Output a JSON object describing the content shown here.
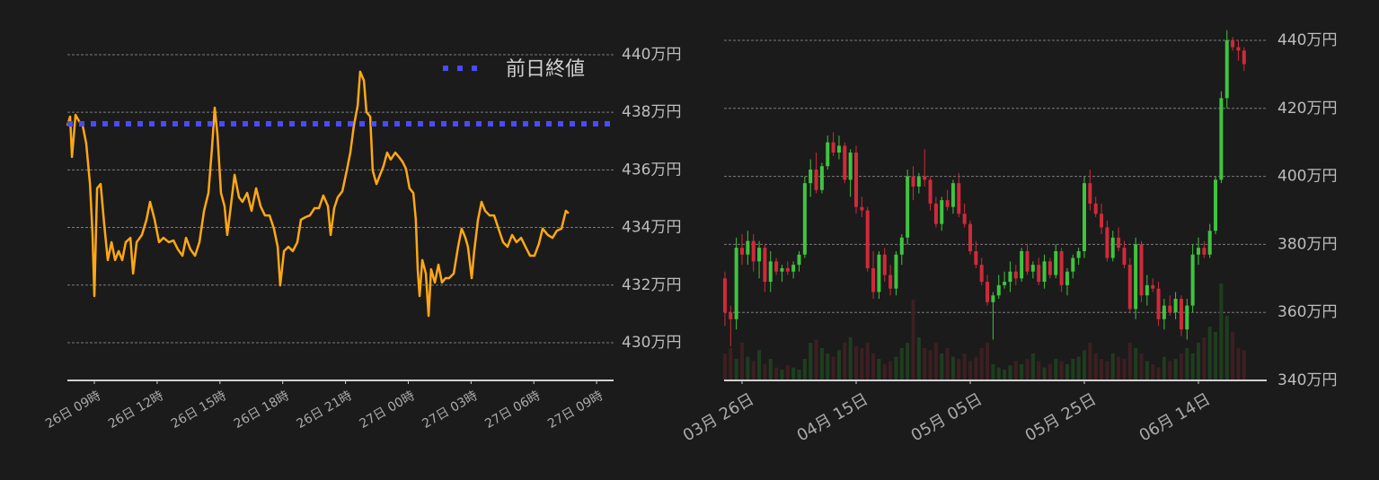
{
  "chart_data": [
    {
      "type": "line",
      "x": [
        -1.29,
        -1.16,
        -1.07,
        -0.9,
        -0.73,
        -0.56,
        -0.39,
        -0.21,
        -0.09,
        0,
        0.13,
        0.3,
        0.47,
        0.64,
        0.82,
        0.99,
        1.16,
        1.33,
        1.5,
        1.72,
        1.85,
        2.02,
        2.27,
        2.49,
        2.66,
        2.88,
        3.09,
        3.3,
        3.56,
        3.78,
        3.99,
        4.21,
        4.38,
        4.59,
        4.81,
        5.02,
        5.24,
        5.45,
        5.62,
        5.75,
        5.88,
        6.05,
        6.22,
        6.35,
        6.52,
        6.7,
        6.91,
        7.08,
        7.3,
        7.51,
        7.73,
        7.94,
        8.15,
        8.37,
        8.58,
        8.76,
        8.88,
        9.06,
        9.27,
        9.48,
        9.7,
        9.87,
        10.09,
        10.3,
        10.52,
        10.73,
        10.94,
        11.16,
        11.29,
        11.46,
        11.63,
        11.85,
        12.06,
        12.23,
        12.4,
        12.58,
        12.7,
        12.88,
        13,
        13.18,
        13.3,
        13.48,
        13.65,
        13.82,
        13.99,
        14.16,
        14.38,
        14.55,
        14.72,
        14.89,
        15.06,
        15.24,
        15.36,
        15.45,
        15.54,
        15.67,
        15.84,
        15.97,
        16.09,
        16.27,
        16.44,
        16.61,
        16.78,
        16.95,
        17.17,
        17.38,
        17.55,
        17.73,
        17.85,
        18.03,
        18.15,
        18.33,
        18.5,
        18.67,
        18.88,
        19.1,
        19.31,
        19.53,
        19.74,
        19.96,
        20.17,
        20.39,
        20.6,
        20.82,
        21.03,
        21.24,
        21.42,
        21.67,
        21.89,
        22.1,
        22.32,
        22.53,
        22.66
      ],
      "series": [
        {
          "color": "#ffa812",
          "values": [
            437.54,
            437.85,
            436.45,
            437.91,
            437.69,
            437.54,
            436.92,
            435.51,
            433.8,
            431.62,
            435.36,
            435.51,
            434.11,
            432.87,
            433.49,
            432.87,
            433.18,
            432.87,
            433.49,
            433.64,
            432.4,
            433.49,
            433.74,
            434.27,
            434.89,
            434.27,
            433.49,
            433.64,
            433.49,
            433.55,
            433.24,
            433.02,
            433.64,
            433.24,
            433.02,
            433.49,
            434.58,
            435.2,
            436.76,
            438.16,
            437.23,
            435.2,
            434.74,
            433.74,
            434.74,
            435.83,
            435.05,
            434.89,
            435.2,
            434.58,
            435.36,
            434.74,
            434.42,
            434.42,
            433.96,
            433.33,
            431.99,
            433.18,
            433.33,
            433.18,
            433.49,
            434.27,
            434.36,
            434.42,
            434.67,
            434.67,
            435.11,
            434.74,
            433.74,
            434.67,
            435.05,
            435.26,
            435.98,
            436.6,
            437.54,
            438.22,
            439.41,
            439.1,
            438.01,
            437.85,
            435.98,
            435.51,
            435.83,
            436.14,
            436.6,
            436.36,
            436.6,
            436.45,
            436.29,
            436.04,
            435.36,
            435.2,
            434.27,
            432.55,
            431.62,
            432.87,
            432.4,
            430.93,
            432.55,
            432.09,
            432.71,
            432.09,
            432.24,
            432.24,
            432.4,
            433.33,
            433.96,
            433.64,
            433.33,
            432.24,
            433.18,
            434.27,
            434.89,
            434.58,
            434.42,
            434.42,
            433.96,
            433.49,
            433.33,
            433.74,
            433.49,
            433.64,
            433.33,
            433.02,
            433.02,
            433.43,
            433.96,
            433.74,
            433.64,
            433.89,
            433.96,
            434.58,
            434.49
          ]
        }
      ],
      "reference_line": {
        "name": "前日終値",
        "value": 437.6,
        "color": "#4a4aff"
      },
      "legend": "upper right",
      "xlim": [
        -1.29,
        24.81
      ],
      "xticks": [
        {
          "value": 0,
          "label": "26日 09時"
        },
        {
          "value": 3,
          "label": "26日 12時"
        },
        {
          "value": 6,
          "label": "26日 15時"
        },
        {
          "value": 9,
          "label": "26日 18時"
        },
        {
          "value": 12,
          "label": "26日 21時"
        },
        {
          "value": 15,
          "label": "27日 00時"
        },
        {
          "value": 18,
          "label": "27日 03時"
        },
        {
          "value": 21,
          "label": "27日 06時"
        },
        {
          "value": 24,
          "label": "27日 09時"
        }
      ],
      "ylim": [
        428.69,
        440.65
      ],
      "yticks": [
        {
          "value": 430,
          "label": "430万円"
        },
        {
          "value": 432,
          "label": "432万円"
        },
        {
          "value": 434,
          "label": "434万円"
        },
        {
          "value": 436,
          "label": "436万円"
        },
        {
          "value": 438,
          "label": "438万円"
        },
        {
          "value": 440,
          "label": "440万円"
        }
      ],
      "grid": true
    },
    {
      "type": "candlestick",
      "x": [
        -3,
        -2,
        -1,
        0,
        1,
        2,
        3,
        4,
        5,
        6,
        7,
        8,
        9,
        10,
        11,
        12,
        13,
        14,
        15,
        16,
        17,
        18,
        19,
        20,
        21,
        22,
        23,
        24,
        25,
        26,
        27,
        28,
        29,
        30,
        31,
        32,
        33,
        34,
        35,
        36,
        37,
        38,
        39,
        40,
        41,
        42,
        43,
        44,
        45,
        46,
        47,
        48,
        49,
        50,
        51,
        52,
        53,
        54,
        55,
        56,
        57,
        58,
        59,
        60,
        61,
        62,
        63,
        64,
        65,
        66,
        67,
        68,
        69,
        70,
        71,
        72,
        73,
        74,
        75,
        76,
        77,
        78,
        79,
        80,
        81,
        82,
        83,
        84,
        85,
        86,
        87,
        88
      ],
      "open": [
        370,
        360,
        358,
        379,
        377,
        381,
        375,
        379,
        369,
        375,
        372,
        373,
        372,
        374,
        377,
        398,
        402,
        396,
        403,
        410,
        407,
        409,
        399,
        407,
        391,
        390,
        373,
        366,
        377,
        371,
        367,
        377,
        382,
        400,
        397,
        400,
        399,
        392,
        386,
        393,
        391,
        398,
        389,
        386,
        378,
        374,
        369,
        363,
        365,
        368,
        369,
        372,
        370,
        378,
        372,
        374,
        369,
        375,
        371,
        378,
        368,
        372,
        376,
        378,
        398,
        392,
        389,
        385,
        376,
        382,
        379,
        374,
        361,
        380,
        365,
        368,
        367,
        358,
        362,
        360,
        364,
        355,
        362,
        377,
        379,
        377,
        384,
        399,
        423,
        440,
        438,
        437
      ],
      "high": [
        372,
        362,
        382,
        383,
        384,
        383,
        381,
        380,
        378,
        376,
        374,
        375,
        375,
        378,
        400,
        405,
        407,
        404,
        412,
        413,
        412,
        410,
        408,
        409,
        394,
        391,
        378,
        378,
        379,
        374,
        378,
        383,
        402,
        403,
        401,
        408,
        400,
        394,
        394,
        396,
        399,
        401,
        392,
        387,
        381,
        376,
        371,
        366,
        371,
        372,
        375,
        374,
        379,
        380,
        375,
        376,
        377,
        376,
        380,
        379,
        373,
        377,
        379,
        400,
        402,
        394,
        392,
        387,
        384,
        385,
        381,
        376,
        382,
        381,
        371,
        370,
        369,
        364,
        365,
        366,
        365,
        364,
        380,
        382,
        381,
        386,
        400,
        425,
        443,
        441,
        440,
        438
      ],
      "low": [
        356,
        350,
        355,
        374,
        374,
        372,
        370,
        366,
        366,
        371,
        369,
        371,
        370,
        372,
        376,
        394,
        395,
        395,
        402,
        406,
        405,
        398,
        394,
        389,
        388,
        372,
        364,
        364,
        369,
        365,
        365,
        374,
        380,
        393,
        395,
        397,
        390,
        385,
        384,
        390,
        389,
        388,
        385,
        377,
        373,
        368,
        362,
        352,
        364,
        367,
        366,
        368,
        369,
        371,
        370,
        368,
        367,
        370,
        370,
        366,
        365,
        370,
        374,
        376,
        390,
        388,
        383,
        375,
        375,
        378,
        373,
        360,
        358,
        363,
        362,
        366,
        356,
        355,
        359,
        358,
        353,
        352,
        360,
        374,
        376,
        376,
        383,
        398,
        420,
        437,
        434,
        431
      ],
      "close": [
        360,
        358,
        379,
        377,
        381,
        375,
        379,
        369,
        375,
        372,
        373,
        372,
        374,
        377,
        398,
        402,
        396,
        403,
        410,
        407,
        409,
        399,
        407,
        391,
        390,
        373,
        366,
        377,
        371,
        367,
        377,
        382,
        400,
        397,
        400,
        399,
        392,
        386,
        393,
        391,
        398,
        389,
        386,
        378,
        374,
        369,
        363,
        365,
        368,
        369,
        372,
        370,
        378,
        372,
        374,
        369,
        375,
        371,
        378,
        368,
        372,
        376,
        378,
        398,
        392,
        389,
        385,
        376,
        382,
        379,
        374,
        361,
        380,
        365,
        368,
        367,
        358,
        362,
        360,
        364,
        355,
        362,
        377,
        379,
        377,
        384,
        399,
        423,
        440,
        438,
        437,
        433
      ],
      "volume": [
        25,
        30,
        20,
        35,
        22,
        18,
        28,
        15,
        20,
        12,
        10,
        14,
        12,
        10,
        20,
        35,
        38,
        30,
        25,
        22,
        28,
        35,
        40,
        32,
        30,
        35,
        25,
        20,
        15,
        18,
        22,
        30,
        35,
        75,
        40,
        30,
        28,
        35,
        25,
        30,
        22,
        20,
        25,
        18,
        22,
        30,
        35,
        15,
        12,
        10,
        14,
        18,
        15,
        20,
        25,
        18,
        12,
        15,
        20,
        18,
        15,
        20,
        22,
        28,
        35,
        25,
        20,
        18,
        25,
        22,
        20,
        35,
        30,
        25,
        18,
        15,
        12,
        22,
        18,
        20,
        25,
        30,
        25,
        35,
        40,
        50,
        45,
        90,
        60,
        45,
        30,
        28
      ],
      "volume_lim": [
        0,
        100
      ],
      "up_color": "#3fc43f",
      "down_color": "#d02a3a",
      "xlim": [
        -3.15,
        91.97
      ],
      "xticks": [
        {
          "value": 0,
          "label": "03月 26日"
        },
        {
          "value": 20,
          "label": "04月 15日"
        },
        {
          "value": 40,
          "label": "05月 05日"
        },
        {
          "value": 60,
          "label": "05月 25日"
        },
        {
          "value": 80,
          "label": "06月 14日"
        }
      ],
      "ylim": [
        340,
        443.5
      ],
      "yticks": [
        {
          "value": 340,
          "label": "340万円"
        },
        {
          "value": 360,
          "label": "360万円"
        },
        {
          "value": 380,
          "label": "380万円"
        },
        {
          "value": 400,
          "label": "400万円"
        },
        {
          "value": 420,
          "label": "420万円"
        },
        {
          "value": 440,
          "label": "440万円"
        }
      ],
      "grid": true
    }
  ]
}
